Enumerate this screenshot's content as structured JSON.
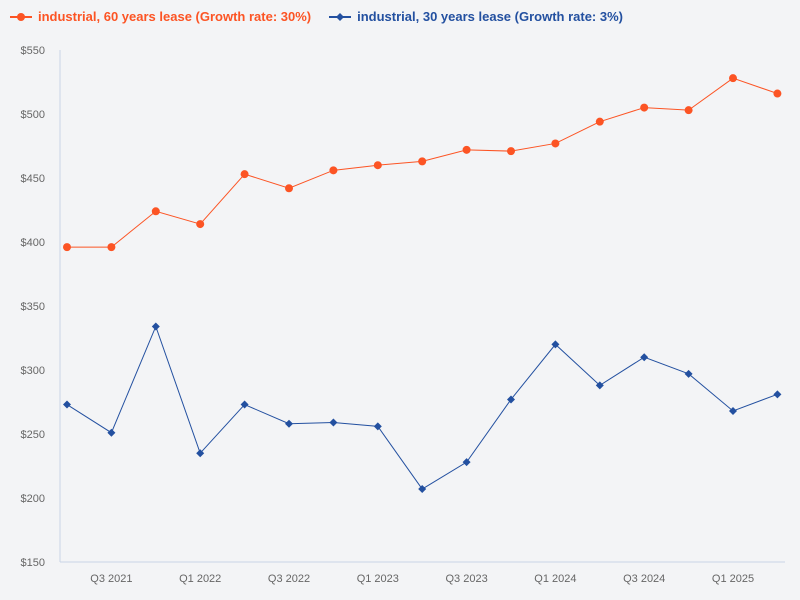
{
  "chart_data": {
    "type": "line",
    "title": "",
    "xlabel": "",
    "ylabel": "",
    "ylim": [
      150,
      550
    ],
    "yticks": [
      150,
      200,
      250,
      300,
      350,
      400,
      450,
      500,
      550
    ],
    "ytick_labels": [
      "$150",
      "$200",
      "$250",
      "$300",
      "$350",
      "$400",
      "$450",
      "$500",
      "$550"
    ],
    "categories": [
      "Q2 2021",
      "Q3 2021",
      "Q4 2021",
      "Q1 2022",
      "Q2 2022",
      "Q3 2022",
      "Q4 2022",
      "Q1 2023",
      "Q2 2023",
      "Q3 2023",
      "Q4 2023",
      "Q1 2024",
      "Q2 2024",
      "Q3 2024",
      "Q4 2024",
      "Q1 2025",
      "Q2 2025"
    ],
    "xtick_labels": [
      "Q3 2021",
      "Q1 2022",
      "Q3 2022",
      "Q1 2023",
      "Q3 2023",
      "Q1 2024",
      "Q3 2024",
      "Q1 2025"
    ],
    "grid": false,
    "legend_position": "top-left",
    "series": [
      {
        "name": "industrial, 60 years lease (Growth rate: 30%)",
        "color": "#fc5424",
        "marker": "circle",
        "values": [
          396,
          396,
          424,
          414,
          453,
          442,
          456,
          460,
          463,
          472,
          471,
          477,
          494,
          505,
          503,
          528,
          516
        ]
      },
      {
        "name": "industrial, 30 years lease (Growth rate: 3%)",
        "color": "#2350a0",
        "marker": "diamond",
        "values": [
          273,
          251,
          334,
          235,
          273,
          258,
          259,
          256,
          207,
          228,
          277,
          320,
          288,
          310,
          297,
          268,
          281
        ]
      }
    ]
  }
}
